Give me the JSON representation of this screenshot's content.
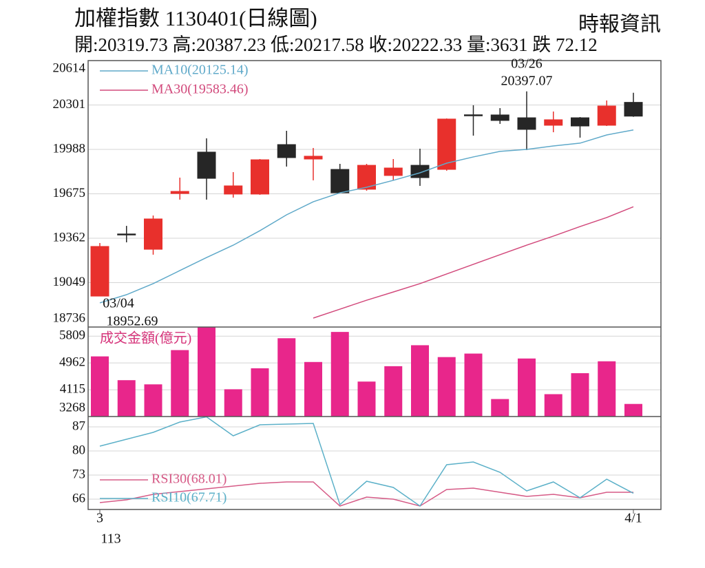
{
  "header": {
    "title": "加權指數 1130401(日線圖)",
    "source": "時報資訊",
    "info": "開:20319.73 高:20387.23 低:20217.58 收:20222.33 量:3631 跌 72.12"
  },
  "chart_data": [
    {
      "type": "candlestick",
      "open": [
        18954,
        19392,
        19284,
        19677,
        19969,
        19673,
        19673,
        20022,
        19920,
        19847,
        19707,
        19804,
        19876,
        19847,
        20232,
        20231,
        20211,
        20158,
        20211,
        20158,
        20319.73
      ],
      "high": [
        19328,
        19449,
        19522,
        19789,
        20066,
        19828,
        19920,
        20119,
        19998,
        19886,
        19886,
        19920,
        19993,
        20206,
        20299,
        20279,
        20397.07,
        20255,
        20216,
        20333,
        20387.23
      ],
      "low": [
        18952.69,
        19333,
        19246,
        19634,
        19634,
        19648,
        19668,
        19867,
        19770,
        19680,
        19697,
        19770,
        19731,
        19838,
        20085,
        20168,
        19983,
        20109,
        20071,
        20153,
        20217.58
      ],
      "close": [
        19304,
        19390,
        19498,
        19692,
        19784,
        19731,
        19915,
        19930,
        19940,
        19682,
        19876,
        19857,
        19789,
        20202,
        20230,
        20192,
        20129,
        20197,
        20153,
        20294,
        20222.33
      ],
      "up_color": "#e8302c",
      "down_color": "#262626",
      "ylim": [
        18736,
        20614
      ],
      "yticks": [
        18736,
        19049,
        19362,
        19675,
        19988,
        20301,
        20614
      ],
      "grid": true,
      "lines": [
        {
          "name": "MA10(20125.14)",
          "color": "#5fa9c9",
          "values": [
            18906,
            18964,
            19042,
            19134,
            19226,
            19313,
            19415,
            19527,
            19619,
            19682,
            19721,
            19770,
            19823,
            19891,
            19935,
            19974,
            19988,
            20012,
            20032,
            20090,
            20125.14
          ]
        },
        {
          "name": "MA30(19583.46)",
          "color": "#d24a7c",
          "values": [
            null,
            null,
            null,
            null,
            null,
            null,
            null,
            null,
            18799,
            18862,
            18925,
            18983,
            19042,
            19110,
            19178,
            19246,
            19313,
            19377,
            19444,
            19508,
            19583.46
          ]
        }
      ],
      "annotations": [
        {
          "label": "03/26",
          "value_label": "20397.07"
        },
        {
          "label": "03/04",
          "value_label": "18952.69"
        }
      ]
    },
    {
      "type": "bar",
      "title": "成交金額(億元)",
      "values": [
        5169,
        4417,
        4285,
        5368,
        6150,
        4130,
        4793,
        5743,
        4992,
        5942,
        4373,
        4859,
        5522,
        5147,
        5258,
        3821,
        5102,
        3975,
        4638,
        5014,
        3666
      ],
      "color": "#e8268b",
      "ylim": [
        3268,
        6097
      ],
      "yticks": [
        3268,
        4115,
        4962,
        5809
      ],
      "grid": true
    },
    {
      "type": "line",
      "categories": [
        "3",
        null,
        null,
        null,
        null,
        null,
        null,
        null,
        null,
        null,
        null,
        null,
        null,
        null,
        null,
        null,
        null,
        null,
        null,
        null,
        "4/1"
      ],
      "x_sublabel": "113",
      "series": [
        {
          "name": "RSI30(68.01)",
          "color": "#d65a86",
          "values": [
            65,
            65.8,
            67.4,
            68.2,
            69,
            69.8,
            70.6,
            71,
            71,
            64,
            66.6,
            66,
            64,
            68.8,
            69.2,
            68,
            66.8,
            67.4,
            66.4,
            68,
            68.01
          ]
        },
        {
          "name": "RSI10(67.71)",
          "color": "#5bb0c8",
          "values": [
            81.4,
            83.4,
            85.4,
            88.4,
            89.9,
            84.4,
            87.6,
            87.8,
            88,
            64.4,
            71.2,
            69.4,
            64,
            76,
            76.8,
            73.8,
            68.4,
            71,
            66.4,
            71.8,
            67.71
          ]
        }
      ],
      "ylim": [
        63,
        90
      ],
      "yticks": [
        66,
        73,
        80,
        87
      ],
      "grid": true
    }
  ]
}
